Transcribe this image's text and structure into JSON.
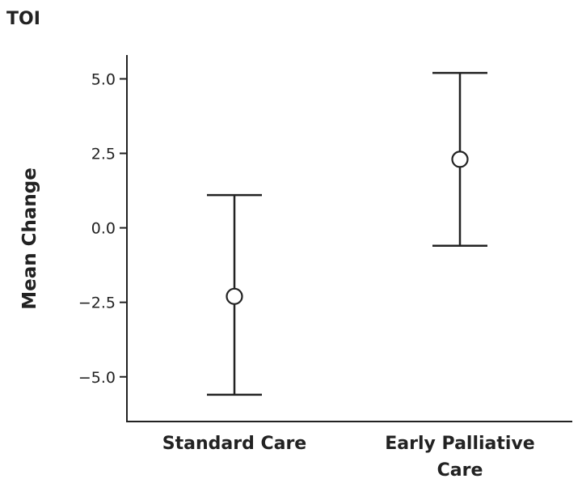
{
  "chart_data": {
    "type": "scatter",
    "title": "TOI",
    "xlabel": "",
    "ylabel": "Mean Change",
    "ylim": [
      -6.5,
      5.8
    ],
    "yticks": [
      5.0,
      2.5,
      0.0,
      -2.5,
      -5.0
    ],
    "ytick_labels": [
      "5.0",
      "2.5",
      "0.0",
      "−2.5",
      "−5.0"
    ],
    "categories": [
      "Standard Care",
      "Early Palliative Care"
    ],
    "category_lines": [
      [
        "Standard Care"
      ],
      [
        "Early Palliative",
        "Care"
      ]
    ],
    "means": [
      -2.3,
      2.3
    ],
    "ci_upper": [
      1.1,
      5.2
    ],
    "ci_lower": [
      -5.6,
      -0.6
    ],
    "grid": false,
    "legend": "none"
  },
  "colors": {
    "ink": "#222222",
    "background": "#ffffff"
  }
}
